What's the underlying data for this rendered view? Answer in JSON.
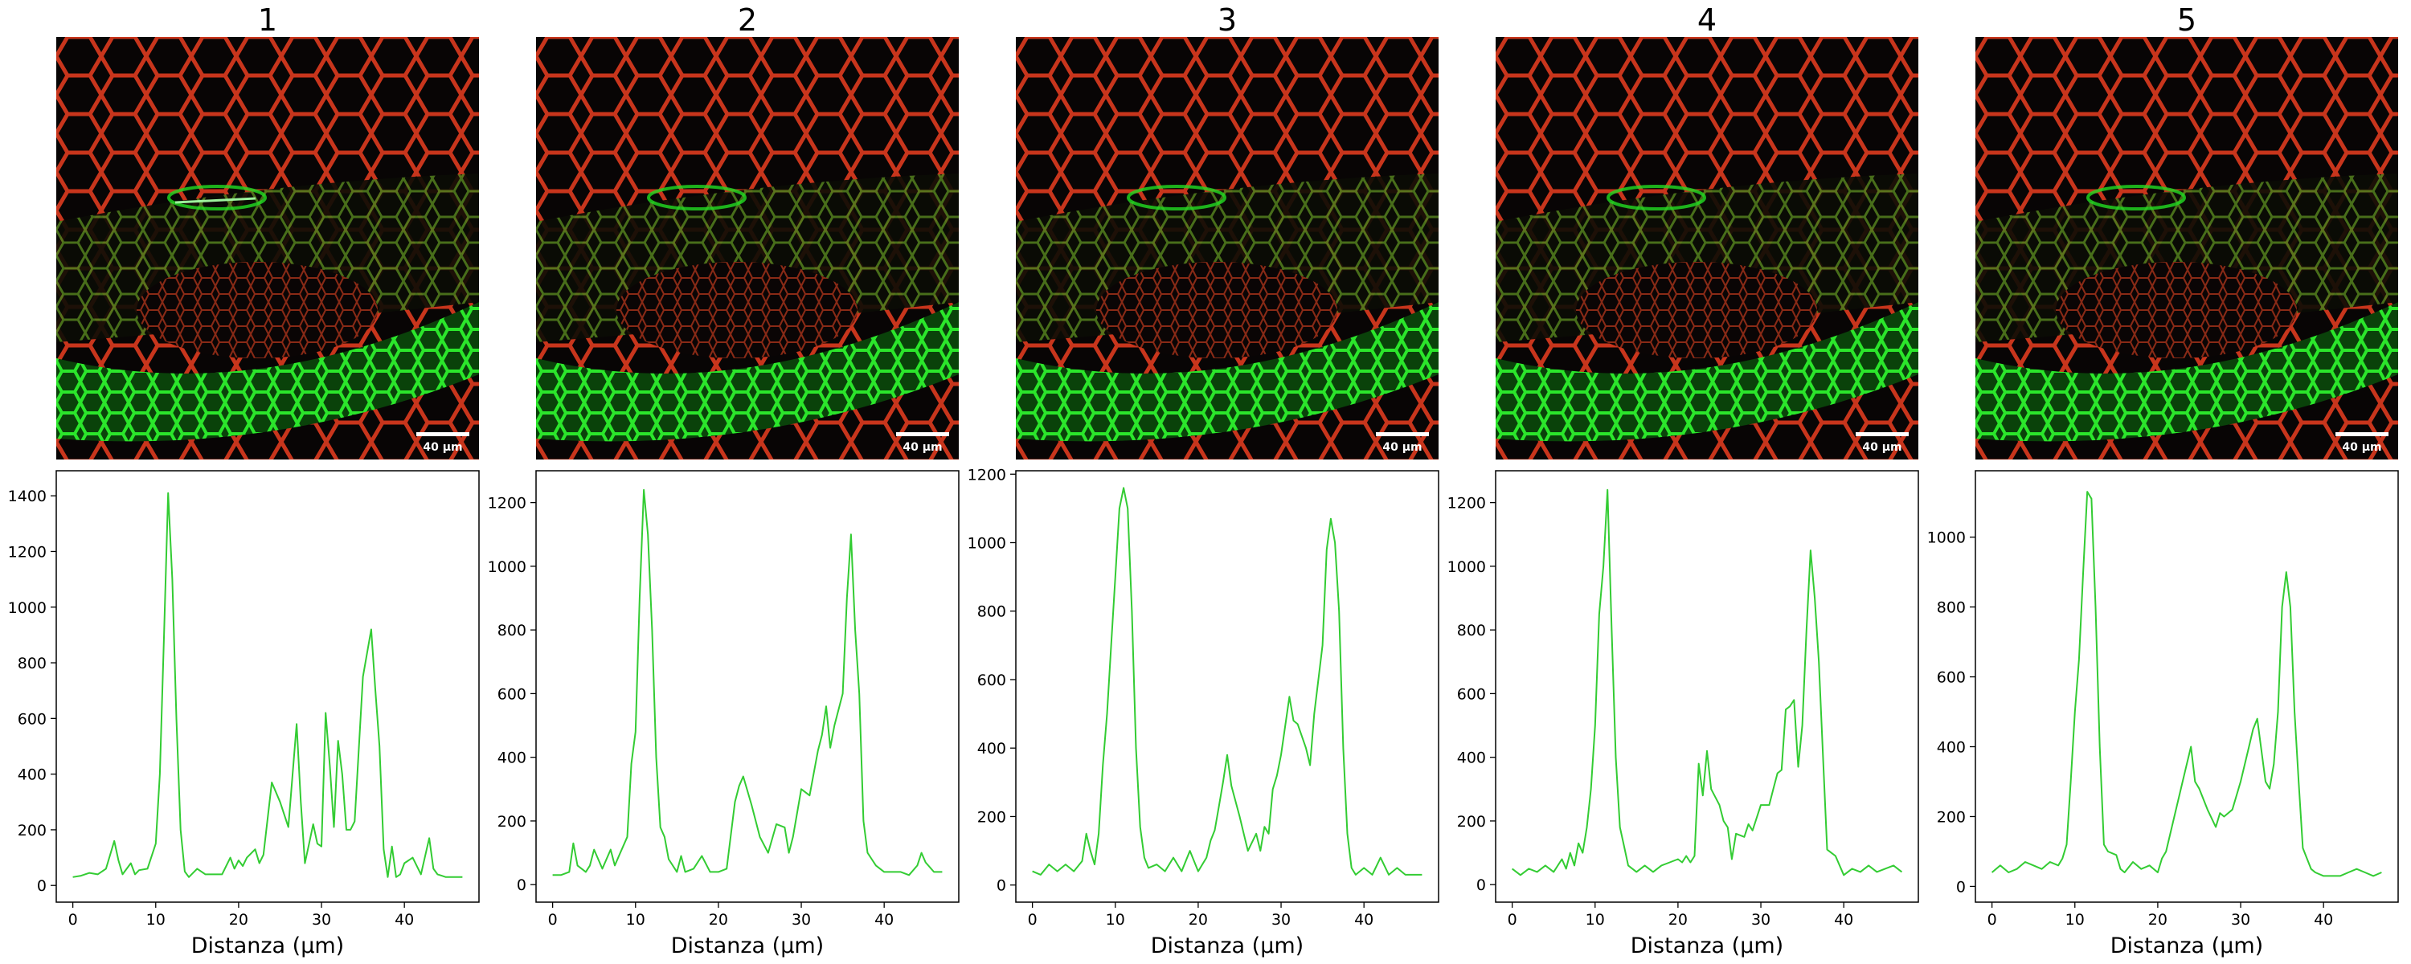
{
  "micrograph": {
    "scalebar_label": "40 µm",
    "colors": {
      "cell_wall": "#d63a1e",
      "fluorescence": "#22dd22",
      "background": "#080505"
    }
  },
  "chart_data": [
    {
      "type": "line",
      "title": "1",
      "xlabel": "Distanza (µm)",
      "ylabel": "",
      "xlim": [
        -2,
        49
      ],
      "ylim": [
        -60,
        1490
      ],
      "xticks": [
        0,
        10,
        20,
        30,
        40
      ],
      "yticks": [
        0,
        200,
        400,
        600,
        800,
        1000,
        1200,
        1400
      ],
      "color": "#33cc33",
      "x": [
        0,
        1,
        2,
        3,
        4,
        5,
        5.5,
        6,
        7,
        7.5,
        8,
        9,
        10,
        10.5,
        11,
        11.5,
        12,
        12.5,
        13,
        13.5,
        14,
        15,
        16,
        17,
        18,
        19,
        19.5,
        20,
        20.5,
        21,
        22,
        22.5,
        23,
        24,
        25,
        26,
        27,
        27.5,
        28,
        28.5,
        29,
        29.5,
        30,
        30.5,
        31,
        31.5,
        32,
        32.5,
        33,
        33.5,
        34,
        35,
        36,
        36.5,
        37,
        37.5,
        38,
        38.5,
        39,
        39.5,
        40,
        41,
        42,
        43,
        43.5,
        44,
        44.5,
        45,
        46,
        47
      ],
      "y": [
        30,
        35,
        45,
        40,
        60,
        160,
        90,
        40,
        80,
        40,
        55,
        60,
        150,
        400,
        900,
        1410,
        1100,
        600,
        200,
        50,
        30,
        60,
        40,
        40,
        40,
        100,
        60,
        90,
        70,
        100,
        130,
        80,
        110,
        370,
        300,
        210,
        580,
        300,
        80,
        150,
        220,
        150,
        140,
        620,
        430,
        210,
        520,
        400,
        200,
        200,
        230,
        750,
        920,
        700,
        500,
        130,
        30,
        140,
        30,
        40,
        80,
        100,
        40,
        170,
        60,
        40,
        35,
        30,
        30,
        30
      ]
    },
    {
      "type": "line",
      "title": "2",
      "xlabel": "Distanza (µm)",
      "ylabel": "",
      "xlim": [
        -2,
        49
      ],
      "ylim": [
        -55,
        1300
      ],
      "xticks": [
        0,
        10,
        20,
        30,
        40
      ],
      "yticks": [
        0,
        200,
        400,
        600,
        800,
        1000,
        1200
      ],
      "color": "#33cc33",
      "x": [
        0,
        1,
        2,
        2.5,
        3,
        4,
        4.5,
        5,
        6,
        7,
        7.5,
        8,
        9,
        9.5,
        10,
        10.5,
        11,
        11.5,
        12,
        12.5,
        13,
        13.5,
        14,
        15,
        15.5,
        16,
        17,
        18,
        19,
        20,
        21,
        22,
        22.5,
        23,
        24,
        25,
        26,
        27,
        28,
        28.5,
        29,
        30,
        31,
        32,
        32.5,
        33,
        33.5,
        34,
        35,
        35.5,
        36,
        36.5,
        37,
        37.5,
        38,
        38.5,
        39,
        40,
        41,
        42,
        43,
        44,
        44.5,
        45,
        46,
        47
      ],
      "y": [
        30,
        30,
        40,
        130,
        60,
        40,
        60,
        110,
        50,
        110,
        60,
        90,
        150,
        380,
        480,
        900,
        1240,
        1100,
        800,
        400,
        180,
        150,
        80,
        40,
        90,
        40,
        50,
        90,
        40,
        40,
        50,
        260,
        310,
        340,
        250,
        150,
        100,
        190,
        180,
        100,
        150,
        300,
        280,
        420,
        470,
        560,
        430,
        500,
        600,
        900,
        1100,
        800,
        600,
        200,
        100,
        80,
        60,
        40,
        40,
        40,
        30,
        60,
        100,
        70,
        40,
        40
      ]
    },
    {
      "type": "line",
      "title": "3",
      "xlabel": "Distanza (µm)",
      "ylabel": "",
      "xlim": [
        -2,
        49
      ],
      "ylim": [
        -50,
        1210
      ],
      "xticks": [
        0,
        10,
        20,
        30,
        40
      ],
      "yticks": [
        0,
        200,
        400,
        600,
        800,
        1000,
        1200
      ],
      "color": "#33cc33",
      "x": [
        0,
        1,
        2,
        3,
        4,
        5,
        6,
        6.5,
        7,
        7.5,
        8,
        8.5,
        9,
        9.5,
        10,
        10.5,
        11,
        11.5,
        12,
        12.5,
        13,
        13.5,
        14,
        15,
        16,
        17,
        18,
        19,
        20,
        21,
        21.5,
        22,
        22.5,
        23,
        23.5,
        24,
        25,
        25.5,
        26,
        27,
        27.5,
        28,
        28.5,
        29,
        29.5,
        30,
        31,
        31.5,
        32,
        33,
        33.5,
        34,
        35,
        35.5,
        36,
        36.5,
        37,
        37.5,
        38,
        38.5,
        39,
        40,
        41,
        42,
        43,
        44,
        45,
        46,
        47
      ],
      "y": [
        40,
        30,
        60,
        40,
        60,
        40,
        70,
        150,
        100,
        60,
        150,
        350,
        500,
        700,
        900,
        1100,
        1160,
        1100,
        800,
        400,
        170,
        80,
        50,
        60,
        40,
        80,
        40,
        100,
        40,
        80,
        130,
        160,
        230,
        300,
        380,
        290,
        200,
        150,
        100,
        150,
        100,
        170,
        150,
        280,
        320,
        380,
        550,
        480,
        470,
        400,
        350,
        500,
        700,
        980,
        1070,
        1000,
        800,
        400,
        150,
        50,
        30,
        50,
        30,
        80,
        30,
        50,
        30,
        30,
        30
      ]
    },
    {
      "type": "line",
      "title": "4",
      "xlabel": "Distanza (µm)",
      "ylabel": "",
      "xlim": [
        -2,
        49
      ],
      "ylim": [
        -55,
        1300
      ],
      "xticks": [
        0,
        10,
        20,
        30,
        40
      ],
      "yticks": [
        0,
        200,
        400,
        600,
        800,
        1000,
        1200
      ],
      "color": "#33cc33",
      "x": [
        0,
        1,
        2,
        3,
        4,
        5,
        6,
        6.5,
        7,
        7.5,
        8,
        8.5,
        9,
        9.5,
        10,
        10.5,
        11,
        11.5,
        12,
        12.5,
        13,
        13.5,
        14,
        15,
        16,
        17,
        18,
        19,
        20,
        20.5,
        21,
        21.5,
        22,
        22.5,
        23,
        23.5,
        24,
        25,
        25.5,
        26,
        26.5,
        27,
        28,
        28.5,
        29,
        30,
        31,
        31.5,
        32,
        32.5,
        33,
        33.5,
        34,
        34.5,
        35,
        35.5,
        36,
        36.5,
        37,
        37.5,
        38,
        38.5,
        39,
        40,
        41,
        42,
        43,
        44,
        45,
        46,
        47
      ],
      "y": [
        50,
        30,
        50,
        40,
        60,
        40,
        80,
        50,
        100,
        60,
        130,
        100,
        180,
        300,
        500,
        850,
        1000,
        1240,
        800,
        400,
        180,
        120,
        60,
        40,
        60,
        40,
        60,
        70,
        80,
        70,
        90,
        70,
        90,
        380,
        280,
        420,
        300,
        250,
        200,
        180,
        80,
        160,
        150,
        190,
        170,
        250,
        250,
        300,
        350,
        360,
        550,
        560,
        580,
        370,
        500,
        800,
        1050,
        900,
        700,
        400,
        110,
        100,
        90,
        30,
        50,
        40,
        60,
        40,
        50,
        60,
        40
      ]
    },
    {
      "type": "line",
      "title": "5",
      "xlabel": "Distanza (µm)",
      "ylabel": "",
      "xlim": [
        -2,
        49
      ],
      "ylim": [
        -45,
        1190
      ],
      "xticks": [
        0,
        10,
        20,
        30,
        40
      ],
      "yticks": [
        0,
        200,
        400,
        600,
        800,
        1000
      ],
      "color": "#33cc33",
      "x": [
        0,
        1,
        2,
        3,
        4,
        5,
        6,
        7,
        8,
        8.5,
        9,
        9.5,
        10,
        10.5,
        11,
        11.5,
        12,
        12.5,
        13,
        13.5,
        14,
        15,
        15.5,
        16,
        17,
        18,
        19,
        20,
        20.5,
        21,
        22,
        23,
        23.5,
        24,
        24.5,
        25,
        26,
        27,
        27.5,
        28,
        29,
        30,
        31,
        31.5,
        32,
        33,
        33.5,
        34,
        34.5,
        35,
        35.5,
        36,
        36.5,
        37,
        37.5,
        38,
        38.5,
        39,
        40,
        41,
        42,
        43,
        44,
        45,
        46,
        47
      ],
      "y": [
        40,
        60,
        40,
        50,
        70,
        60,
        50,
        70,
        60,
        80,
        120,
        300,
        500,
        650,
        900,
        1130,
        1110,
        800,
        400,
        120,
        100,
        90,
        50,
        40,
        70,
        50,
        60,
        40,
        80,
        100,
        200,
        300,
        350,
        400,
        300,
        280,
        220,
        170,
        210,
        200,
        220,
        300,
        400,
        450,
        480,
        300,
        280,
        350,
        500,
        800,
        900,
        800,
        500,
        300,
        110,
        80,
        50,
        40,
        30,
        30,
        30,
        40,
        50,
        40,
        30,
        40
      ]
    }
  ]
}
